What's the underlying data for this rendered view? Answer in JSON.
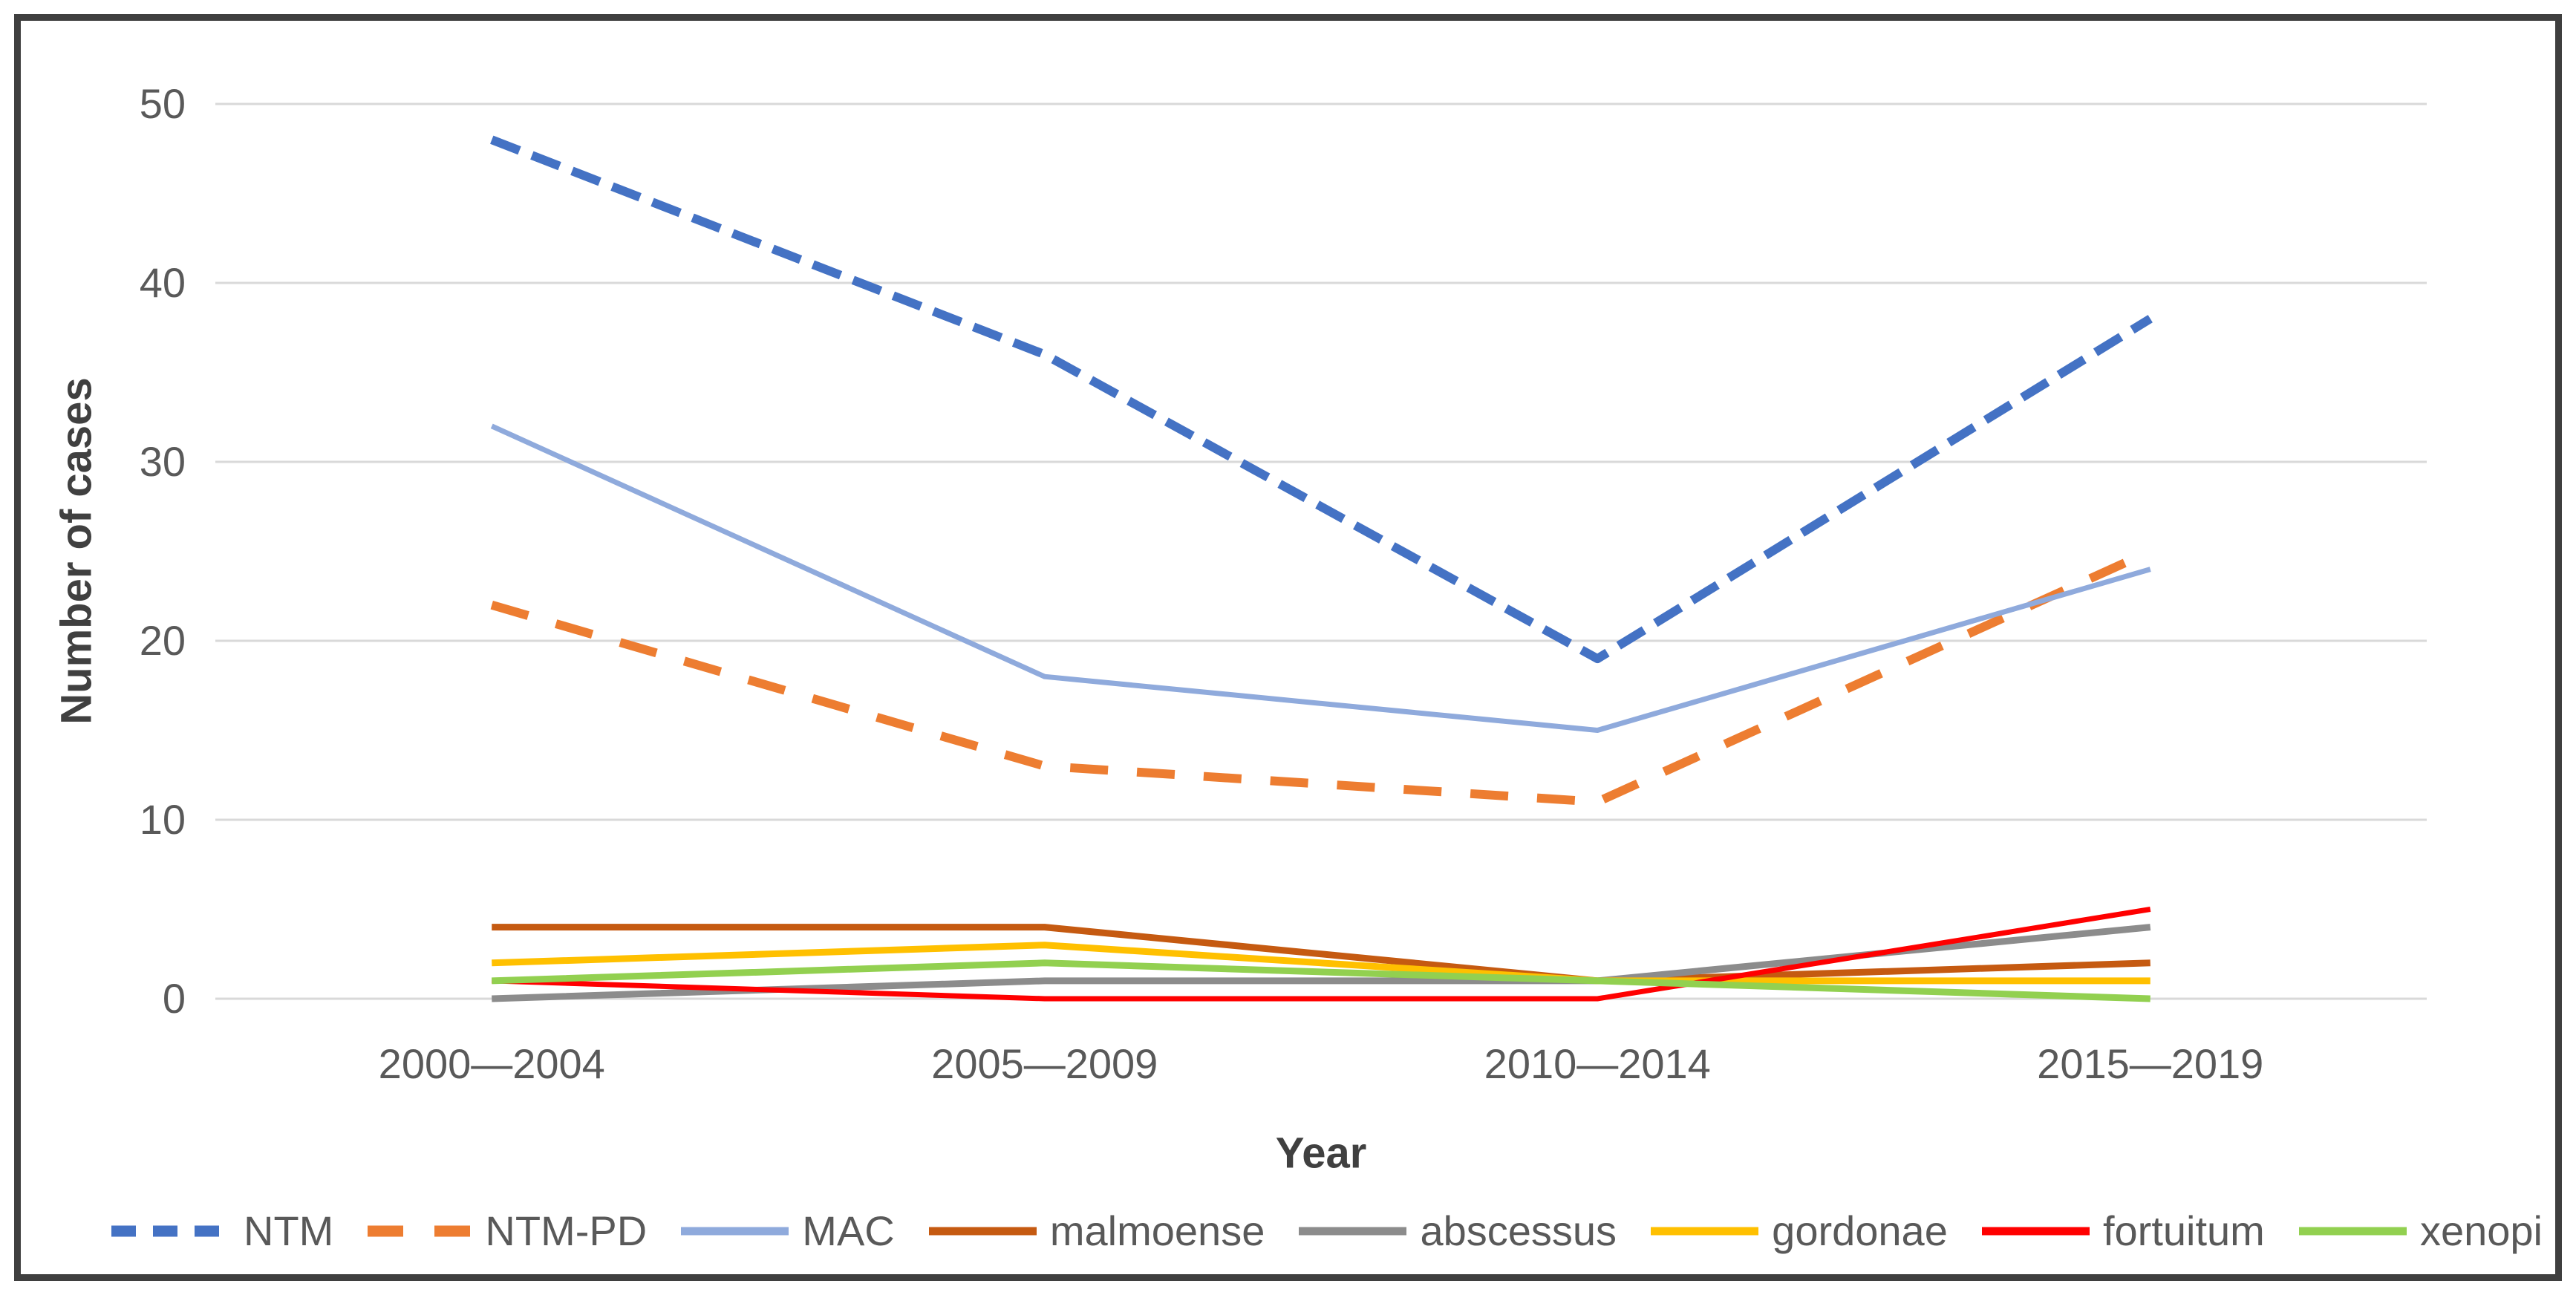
{
  "figure": {
    "background_color": "#FFFFFF",
    "border_color": "#3F3F3F",
    "gridline_color": "#D9D9D9",
    "tick_label_color": "#595959",
    "axis_title_color": "#404040"
  },
  "chart_data": {
    "type": "line",
    "title": "",
    "xlabel": "Year",
    "ylabel": "Number of cases",
    "categories": [
      "2000—2004",
      "2005—2009",
      "2010—2014",
      "2015—2019"
    ],
    "ylim": [
      0,
      50
    ],
    "yticks": [
      0,
      10,
      20,
      30,
      40,
      50
    ],
    "grid": true,
    "legend_position": "bottom",
    "series": [
      {
        "name": "NTM",
        "color": "#4472C4",
        "line_style": "dashed",
        "values": [
          48,
          36,
          19,
          38
        ]
      },
      {
        "name": "NTM-PD",
        "color": "#ED7D31",
        "line_style": "dashed",
        "values": [
          22,
          13,
          11,
          25
        ]
      },
      {
        "name": "MAC",
        "color": "#8FAADC",
        "line_style": "solid",
        "values": [
          32,
          18,
          15,
          24
        ]
      },
      {
        "name": "malmoense",
        "color": "#C55A11",
        "line_style": "solid",
        "values": [
          4,
          4,
          1,
          2
        ]
      },
      {
        "name": "abscessus",
        "color": "#8C8C8C",
        "line_style": "solid",
        "values": [
          0,
          1,
          1,
          4
        ]
      },
      {
        "name": "gordonae",
        "color": "#FFC000",
        "line_style": "solid",
        "values": [
          2,
          3,
          1,
          1
        ]
      },
      {
        "name": "fortuitum",
        "color": "#FF0000",
        "line_style": "solid",
        "values": [
          1,
          0,
          0,
          5
        ]
      },
      {
        "name": "xenopi",
        "color": "#92D050",
        "line_style": "solid",
        "values": [
          1,
          2,
          1,
          0
        ]
      }
    ]
  }
}
